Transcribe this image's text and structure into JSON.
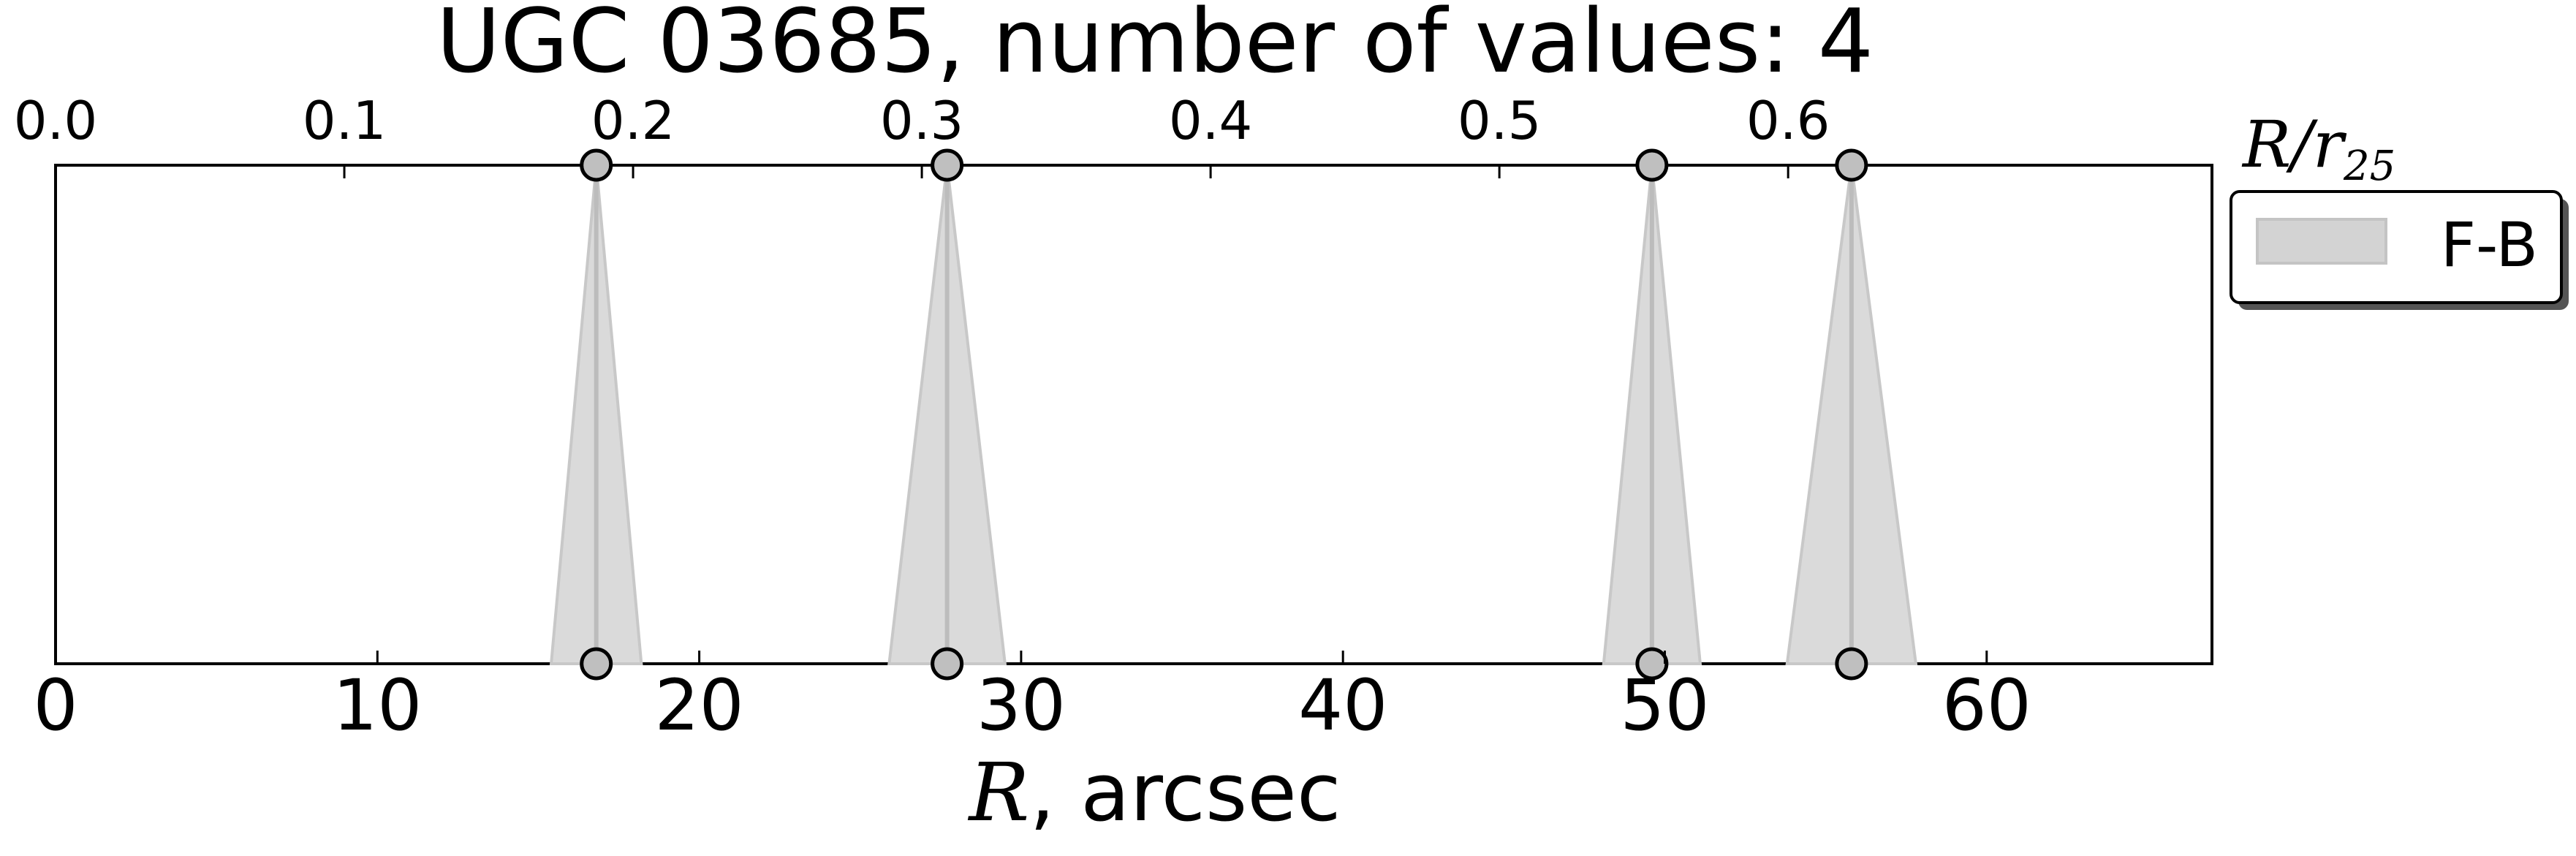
{
  "chart_data": {
    "type": "scatter",
    "title": "UGC 03685, number of values: 4",
    "xlabel_var": "R",
    "xlabel_rest": ", arcsec",
    "xlim": [
      0,
      67
    ],
    "xticks": [
      {
        "value": 0,
        "label": "0"
      },
      {
        "value": 10,
        "label": "10"
      },
      {
        "value": 20,
        "label": "20"
      },
      {
        "value": 30,
        "label": "30"
      },
      {
        "value": 40,
        "label": "40"
      },
      {
        "value": 50,
        "label": "50"
      },
      {
        "value": 60,
        "label": "60"
      }
    ],
    "top_axis": {
      "label_var": "R/r",
      "label_sub": "25",
      "scale": 0.011146,
      "ticks": [
        {
          "value": 0.0,
          "label": "0.0"
        },
        {
          "value": 0.1,
          "label": "0.1"
        },
        {
          "value": 0.2,
          "label": "0.2"
        },
        {
          "value": 0.3,
          "label": "0.3"
        },
        {
          "value": 0.4,
          "label": "0.4"
        },
        {
          "value": 0.5,
          "label": "0.5"
        },
        {
          "value": 0.6,
          "label": "0.6"
        }
      ]
    },
    "series": [
      {
        "name": "F-B",
        "color": "#d3d3d3",
        "line_color": "#bcbcbc",
        "points": [
          {
            "x": 16.8,
            "halfwidth": 1.4
          },
          {
            "x": 27.7,
            "halfwidth": 1.8
          },
          {
            "x": 49.6,
            "halfwidth": 1.5
          },
          {
            "x": 55.8,
            "halfwidth": 2.0
          }
        ]
      }
    ],
    "legend": {
      "position": "outside-right-top",
      "label": "F-B"
    },
    "grid": false
  }
}
